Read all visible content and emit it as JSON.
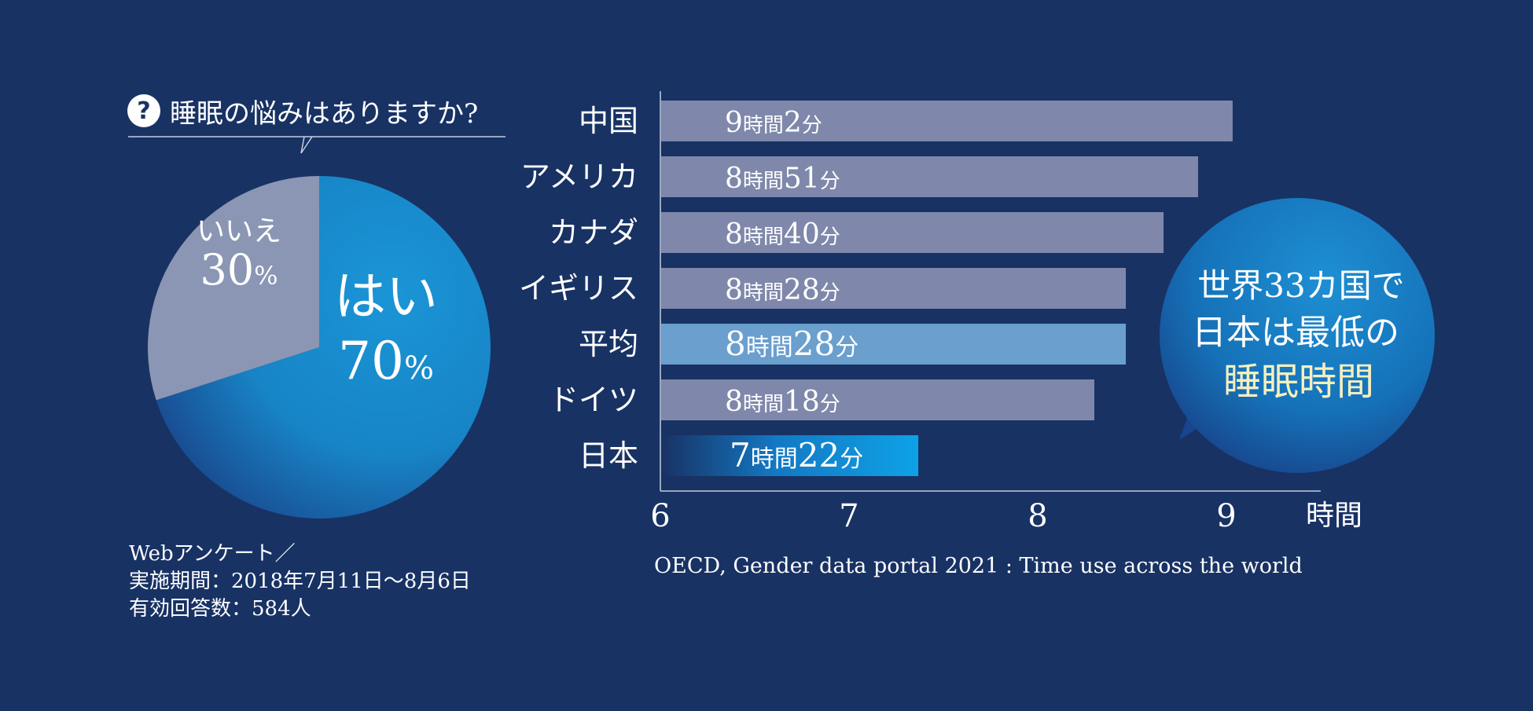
{
  "question": {
    "icon": "question-icon",
    "icon_glyph": "?",
    "text": "睡眠の悩みはありますか?"
  },
  "survey_note": {
    "line1": "Webアンケート／",
    "line2": "実施期間：2018年7月11日〜8月6日",
    "line3": "有効回答数：584人"
  },
  "source": "OECD, Gender data portal 2021 : Time use across the world",
  "bubble": {
    "line1": "世界33カ国で",
    "line2": "日本は最低の",
    "line3": "睡眠時間"
  },
  "colors": {
    "background": "#183264",
    "pie_yes": "#1a8fd0",
    "pie_no": "#8a96b4",
    "bar_default": "#7f88ab",
    "bar_average": "#6a9fce",
    "bar_japan": "#0e9be2",
    "bubble_highlight": "#f5efbe"
  },
  "chart_data": [
    {
      "type": "pie",
      "slices": [
        {
          "label": "はい",
          "value": 70,
          "value_text": "70",
          "unit": "%"
        },
        {
          "label": "いいえ",
          "value": 30,
          "value_text": "30",
          "unit": "%"
        }
      ]
    },
    {
      "type": "bar",
      "orientation": "horizontal",
      "categories": [
        "中国",
        "アメリカ",
        "カナダ",
        "イギリス",
        "平均",
        "ドイツ",
        "日本"
      ],
      "values": [
        9.033,
        8.85,
        8.667,
        8.467,
        8.467,
        8.3,
        7.367
      ],
      "bar_labels": [
        {
          "h": "9",
          "m": "2"
        },
        {
          "h": "8",
          "m": "51"
        },
        {
          "h": "8",
          "m": "40"
        },
        {
          "h": "8",
          "m": "28"
        },
        {
          "h": "8",
          "m": "28"
        },
        {
          "h": "8",
          "m": "18"
        },
        {
          "h": "7",
          "m": "22"
        }
      ],
      "label_hour_unit": "時間",
      "label_minute_unit": "分",
      "highlight": {
        "平均": "average",
        "日本": "japan"
      },
      "xlim": [
        6,
        9.5
      ],
      "xticks": [
        6,
        7,
        8,
        9
      ],
      "xlabel": "時間",
      "grid": false
    }
  ]
}
